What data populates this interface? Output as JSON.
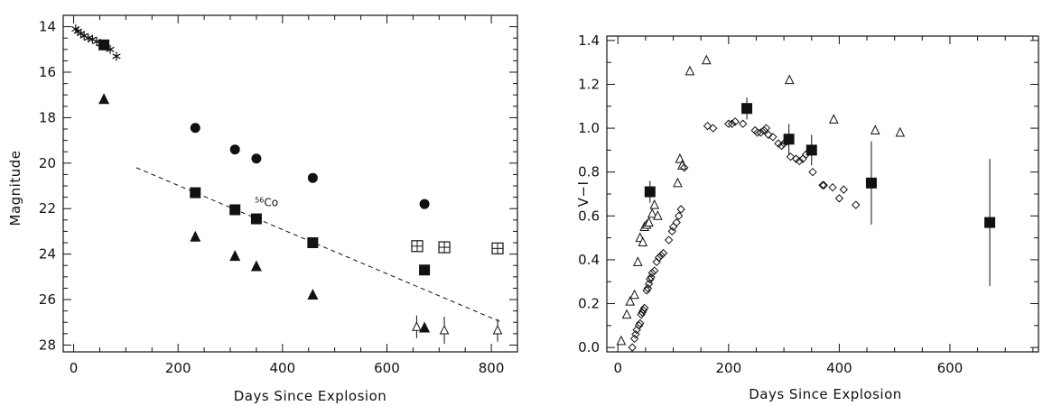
{
  "chart_data": [
    {
      "type": "scatter",
      "xlabel": "Days Since Explosion",
      "ylabel": "Magnitude",
      "xlim": [
        -20,
        850
      ],
      "ylim": [
        28.3,
        13.5
      ],
      "y_inverted": true,
      "xticks": [
        0,
        200,
        400,
        600,
        800
      ],
      "yticks": [
        14,
        16,
        18,
        20,
        22,
        24,
        26,
        28
      ],
      "annotations": [
        {
          "text_sup": "56",
          "text": "Co",
          "x": 347,
          "y": 21.9
        }
      ],
      "series": [
        {
          "marker": "asterisk",
          "x": [
            4,
            8,
            14,
            20,
            28,
            36,
            44,
            52,
            60,
            70,
            82
          ],
          "y": [
            14.1,
            14.2,
            14.3,
            14.4,
            14.5,
            14.55,
            14.65,
            14.75,
            14.85,
            15.0,
            15.3
          ]
        },
        {
          "marker": "filled-square",
          "x": [
            58,
            233,
            309,
            350,
            458,
            672
          ],
          "y": [
            14.8,
            21.3,
            22.05,
            22.45,
            23.5,
            24.7
          ]
        },
        {
          "marker": "filled-circle",
          "x": [
            233,
            309,
            350,
            458,
            672
          ],
          "y": [
            18.45,
            19.4,
            19.8,
            20.65,
            21.8
          ]
        },
        {
          "marker": "filled-triangle",
          "x": [
            58,
            233,
            309,
            350,
            458,
            672
          ],
          "y": [
            17.2,
            23.25,
            24.1,
            24.55,
            25.8,
            27.25
          ]
        },
        {
          "marker": "open-triangle",
          "x": [
            657,
            710,
            812
          ],
          "y": [
            27.2,
            27.35,
            27.35
          ],
          "yerr": [
            0.5,
            0.6,
            0.5
          ]
        },
        {
          "marker": "boxed-square",
          "x": [
            658,
            710,
            812
          ],
          "y": [
            23.65,
            23.7,
            23.75
          ]
        }
      ],
      "fit_line": {
        "style": "dashed",
        "x": [
          120,
          820
        ],
        "y": [
          20.2,
          27.0
        ]
      }
    },
    {
      "type": "scatter",
      "xlabel": "Days Since Explosion",
      "ylabel": "V−I",
      "xlim": [
        -20,
        760
      ],
      "ylim": [
        -0.02,
        1.42
      ],
      "xticks": [
        0,
        200,
        400,
        600
      ],
      "yticks": [
        0.0,
        0.2,
        0.4,
        0.6,
        0.8,
        1.0,
        1.2,
        1.4
      ],
      "ytick_labels": [
        "0.0",
        "0.2",
        "0.4",
        "0.6",
        "0.8",
        "1.0",
        "1.2",
        "1.4"
      ],
      "series": [
        {
          "marker": "open-triangle",
          "x": [
            6,
            16,
            22,
            30,
            36,
            40,
            45,
            48,
            52,
            56,
            62,
            66,
            72,
            108,
            112,
            116,
            130,
            160,
            310,
            390,
            465,
            510
          ],
          "y": [
            0.03,
            0.15,
            0.21,
            0.24,
            0.39,
            0.5,
            0.48,
            0.55,
            0.56,
            0.57,
            0.61,
            0.65,
            0.6,
            0.75,
            0.86,
            0.83,
            1.26,
            1.31,
            1.22,
            1.04,
            0.99,
            0.98
          ]
        },
        {
          "marker": "open-diamond",
          "x": [
            26,
            30,
            32,
            34,
            38,
            40,
            42,
            44,
            46,
            48,
            52,
            54,
            56,
            58,
            60,
            62,
            66,
            70,
            74,
            78,
            82,
            92,
            98,
            100,
            106,
            110,
            114,
            120,
            162,
            172,
            200,
            206,
            212,
            226,
            248,
            252,
            258,
            264,
            268,
            272,
            280,
            290,
            296,
            300,
            306,
            312,
            322,
            328,
            334,
            340,
            352,
            370,
            372,
            388,
            400,
            408,
            430
          ],
          "y": [
            0.0,
            0.04,
            0.06,
            0.08,
            0.1,
            0.11,
            0.15,
            0.16,
            0.17,
            0.18,
            0.26,
            0.27,
            0.29,
            0.31,
            0.32,
            0.34,
            0.35,
            0.39,
            0.41,
            0.42,
            0.43,
            0.49,
            0.53,
            0.55,
            0.57,
            0.6,
            0.63,
            0.82,
            1.01,
            1.0,
            1.02,
            1.02,
            1.03,
            1.02,
            0.99,
            0.98,
            0.98,
            0.99,
            1.0,
            0.97,
            0.96,
            0.93,
            0.92,
            0.93,
            0.94,
            0.87,
            0.86,
            0.85,
            0.86,
            0.88,
            0.8,
            0.74,
            0.74,
            0.73,
            0.68,
            0.72,
            0.65
          ]
        },
        {
          "marker": "filled-square",
          "x": [
            58,
            233,
            309,
            350,
            458,
            672
          ],
          "y": [
            0.71,
            1.09,
            0.95,
            0.9,
            0.75,
            0.57
          ],
          "yerr": [
            0.05,
            0.05,
            0.07,
            0.07,
            0.19,
            0.29
          ]
        }
      ]
    }
  ]
}
